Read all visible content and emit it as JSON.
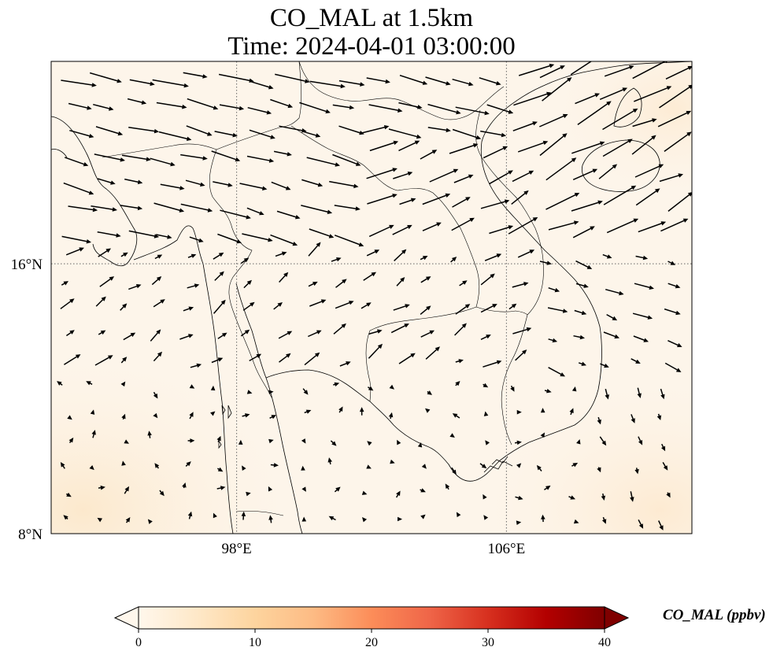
{
  "title": {
    "line1": "CO_MAL at 1.5km",
    "line2": "Time: 2024-04-01 03:00:00"
  },
  "map": {
    "variable": "CO_MAL",
    "level": "1.5km",
    "lon_range": [
      92.5,
      111.5
    ],
    "lat_range": [
      8,
      22
    ],
    "background_color": "#fdf5ea",
    "coast_color": "#000000",
    "grid": "dotted",
    "lon_ticks": [
      {
        "value": 98,
        "label": "98°E"
      },
      {
        "value": 106,
        "label": "106°E"
      }
    ],
    "lat_ticks": [
      {
        "value": 16,
        "label": "16°N"
      },
      {
        "value": 8,
        "label": "8°N"
      }
    ],
    "wind_vectors": "quiver arrows; predominantly westerly/southwesterly, stronger (longer arrows) in the north and over the Gulf of Tonkin, weak (short arrows) in the south"
  },
  "colorbar": {
    "label": "CO_MAL (ppbv)",
    "min": 0,
    "max": 40,
    "extend": "both",
    "ticks": [
      "0",
      "10",
      "20",
      "30",
      "40"
    ],
    "colormap": [
      "#fff7ec",
      "#fee8c8",
      "#fdd49e",
      "#fdbb84",
      "#fc8d59",
      "#ef6548",
      "#d7301f",
      "#b30000",
      "#7f0000"
    ]
  }
}
